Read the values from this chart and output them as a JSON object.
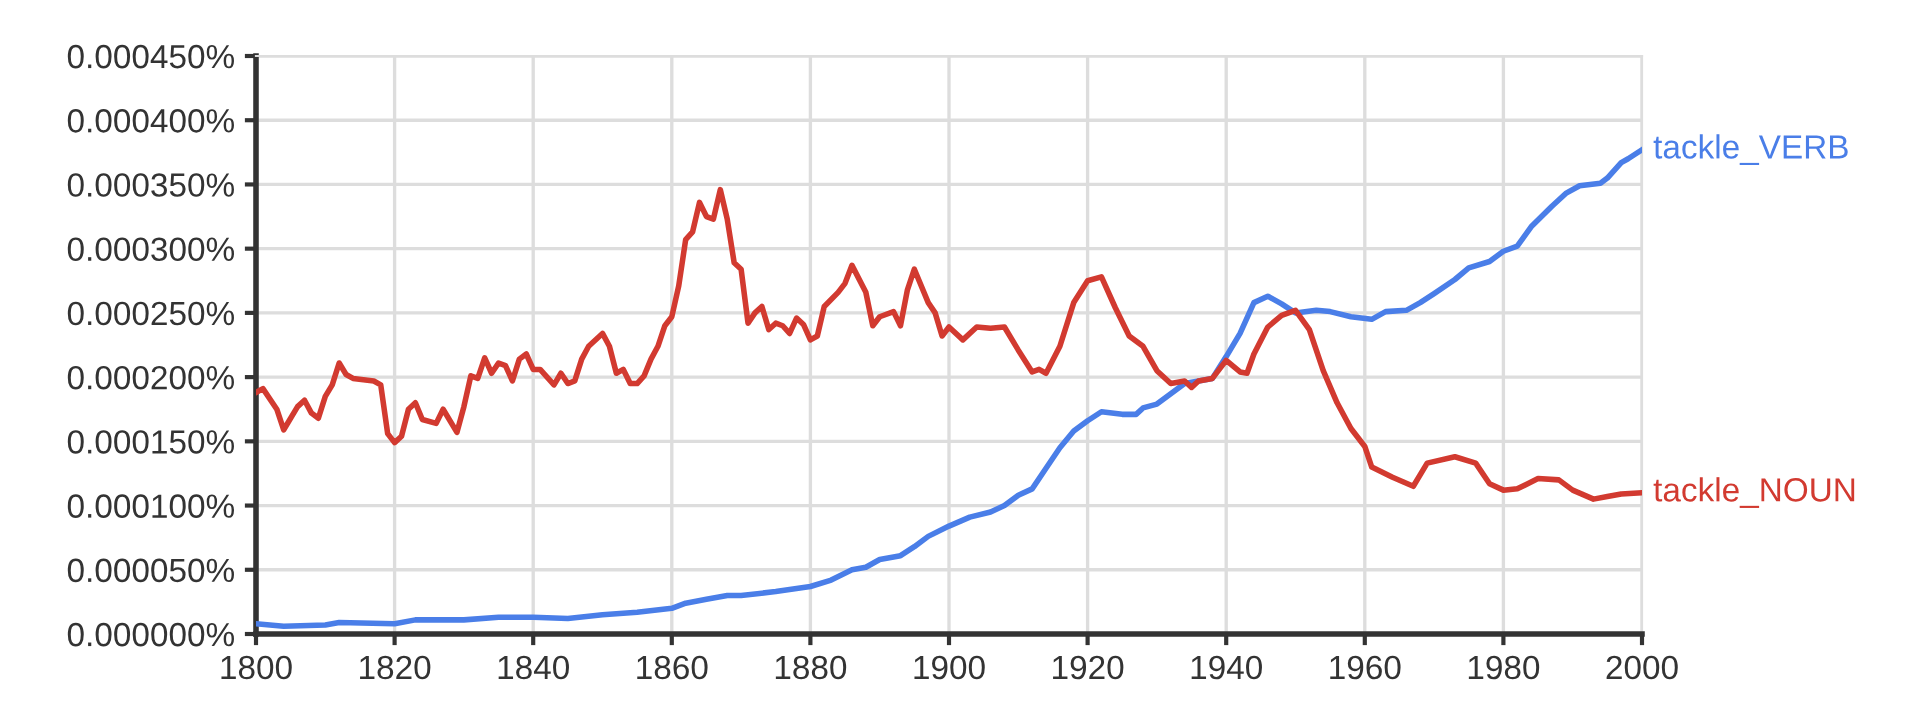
{
  "chart_data": {
    "type": "line",
    "xlim": [
      1800,
      2000
    ],
    "ylim": [
      0,
      0.00045
    ],
    "xticks": [
      1800,
      1820,
      1840,
      1860,
      1880,
      1900,
      1920,
      1940,
      1960,
      1980,
      2000
    ],
    "yticks": [
      {
        "value": 0,
        "label": "0.000000%"
      },
      {
        "value": 5e-05,
        "label": "0.000050%"
      },
      {
        "value": 0.0001,
        "label": "0.000100%"
      },
      {
        "value": 0.00015,
        "label": "0.000150%"
      },
      {
        "value": 0.0002,
        "label": "0.000200%"
      },
      {
        "value": 0.00025,
        "label": "0.000250%"
      },
      {
        "value": 0.0003,
        "label": "0.000300%"
      },
      {
        "value": 0.00035,
        "label": "0.000350%"
      },
      {
        "value": 0.0004,
        "label": "0.000400%"
      },
      {
        "value": 0.00045,
        "label": "0.000450%"
      }
    ],
    "grid": true,
    "legend": false,
    "marker": "none",
    "line_style": "solid",
    "series": [
      {
        "name": "tackle_VERB",
        "color": "#4a7ee8",
        "x": [
          1800,
          1804,
          1810,
          1812,
          1820,
          1823,
          1830,
          1835,
          1840,
          1845,
          1850,
          1855,
          1860,
          1862,
          1865,
          1868,
          1870,
          1875,
          1880,
          1883,
          1886,
          1888,
          1890,
          1893,
          1895,
          1897,
          1900,
          1903,
          1906,
          1908,
          1910,
          1912,
          1914,
          1916,
          1918,
          1920,
          1922,
          1925,
          1927,
          1928,
          1930,
          1932,
          1934,
          1936,
          1938,
          1940,
          1942,
          1944,
          1946,
          1948,
          1950,
          1953,
          1955,
          1958,
          1961,
          1963,
          1966,
          1968,
          1970,
          1973,
          1975,
          1978,
          1980,
          1982,
          1984,
          1987,
          1989,
          1991,
          1994,
          1995,
          1997,
          1998,
          2000
        ],
        "values": [
          8e-06,
          6e-06,
          7e-06,
          9e-06,
          8e-06,
          1.1e-05,
          1.1e-05,
          1.3e-05,
          1.3e-05,
          1.2e-05,
          1.5e-05,
          1.7e-05,
          2e-05,
          2.4e-05,
          2.7e-05,
          3e-05,
          3e-05,
          3.3e-05,
          3.7e-05,
          4.2e-05,
          5e-05,
          5.2e-05,
          5.8e-05,
          6.1e-05,
          6.8e-05,
          7.6e-05,
          8.4e-05,
          9.1e-05,
          9.5e-05,
          0.0001,
          0.000108,
          0.000113,
          0.000129,
          0.000145,
          0.000158,
          0.000166,
          0.000173,
          0.000171,
          0.000171,
          0.000176,
          0.000179,
          0.000187,
          0.000195,
          0.000197,
          0.000199,
          0.000216,
          0.000234,
          0.000258,
          0.000263,
          0.000257,
          0.00025,
          0.000252,
          0.000251,
          0.000247,
          0.000245,
          0.000251,
          0.000252,
          0.000258,
          0.000265,
          0.000276,
          0.000285,
          0.00029,
          0.000298,
          0.000302,
          0.000317,
          0.000333,
          0.000343,
          0.000349,
          0.000351,
          0.000355,
          0.000367,
          0.00037,
          0.000377
        ]
      },
      {
        "name": "tackle_NOUN",
        "color": "#d23a30",
        "x": [
          1800,
          1801,
          1803,
          1804,
          1806,
          1807,
          1808,
          1809,
          1810,
          1811,
          1812,
          1813,
          1814,
          1817,
          1818,
          1819,
          1820,
          1821,
          1822,
          1823,
          1824,
          1826,
          1827,
          1829,
          1830,
          1831,
          1832,
          1833,
          1834,
          1835,
          1836,
          1837,
          1838,
          1839,
          1840,
          1841,
          1843,
          1844,
          1845,
          1846,
          1847,
          1848,
          1850,
          1851,
          1852,
          1853,
          1854,
          1855,
          1856,
          1857,
          1858,
          1859,
          1860,
          1861,
          1862,
          1863,
          1864,
          1865,
          1866,
          1867,
          1868,
          1869,
          1870,
          1871,
          1872,
          1873,
          1874,
          1875,
          1876,
          1877,
          1878,
          1879,
          1880,
          1881,
          1882,
          1884,
          1885,
          1886,
          1888,
          1889,
          1890,
          1892,
          1893,
          1894,
          1895,
          1897,
          1898,
          1899,
          1900,
          1902,
          1904,
          1906,
          1908,
          1910,
          1912,
          1913,
          1914,
          1916,
          1918,
          1920,
          1922,
          1924,
          1926,
          1928,
          1930,
          1932,
          1934,
          1935,
          1936,
          1938,
          1940,
          1942,
          1943,
          1944,
          1946,
          1948,
          1950,
          1952,
          1954,
          1956,
          1958,
          1960,
          1961,
          1964,
          1967,
          1969,
          1973,
          1976,
          1978,
          1980,
          1982,
          1985,
          1988,
          1990,
          1993,
          1995,
          1997,
          2000
        ],
        "values": [
          0.000188,
          0.000191,
          0.000175,
          0.000159,
          0.000177,
          0.000182,
          0.000172,
          0.000168,
          0.000185,
          0.000194,
          0.000211,
          0.000202,
          0.000199,
          0.000197,
          0.000194,
          0.000156,
          0.000149,
          0.000154,
          0.000175,
          0.00018,
          0.000167,
          0.000164,
          0.000175,
          0.000157,
          0.000177,
          0.000201,
          0.000199,
          0.000215,
          0.000203,
          0.000211,
          0.000209,
          0.000197,
          0.000214,
          0.000218,
          0.000206,
          0.000206,
          0.000194,
          0.000203,
          0.000195,
          0.000197,
          0.000214,
          0.000224,
          0.000234,
          0.000224,
          0.000203,
          0.000206,
          0.000195,
          0.000195,
          0.000201,
          0.000214,
          0.000224,
          0.00024,
          0.000247,
          0.000271,
          0.000307,
          0.000313,
          0.000336,
          0.000325,
          0.000323,
          0.000346,
          0.000323,
          0.000289,
          0.000284,
          0.000242,
          0.00025,
          0.000255,
          0.000237,
          0.000242,
          0.00024,
          0.000234,
          0.000246,
          0.000241,
          0.000229,
          0.000232,
          0.000255,
          0.000266,
          0.000273,
          0.000287,
          0.000266,
          0.00024,
          0.000247,
          0.000251,
          0.00024,
          0.000268,
          0.000284,
          0.000258,
          0.00025,
          0.000232,
          0.000239,
          0.000229,
          0.000239,
          0.000238,
          0.000239,
          0.000221,
          0.000204,
          0.000206,
          0.000203,
          0.000224,
          0.000258,
          0.000275,
          0.000278,
          0.000254,
          0.000232,
          0.000224,
          0.000205,
          0.000195,
          0.000197,
          0.000192,
          0.000197,
          0.000199,
          0.000213,
          0.000204,
          0.000203,
          0.000218,
          0.000239,
          0.000248,
          0.000252,
          0.000237,
          0.000205,
          0.00018,
          0.00016,
          0.000146,
          0.00013,
          0.000122,
          0.000115,
          0.000133,
          0.000138,
          0.000133,
          0.000117,
          0.000112,
          0.000113,
          0.000121,
          0.00012,
          0.000112,
          0.000105,
          0.000107,
          0.000109,
          0.00011
        ]
      }
    ]
  }
}
